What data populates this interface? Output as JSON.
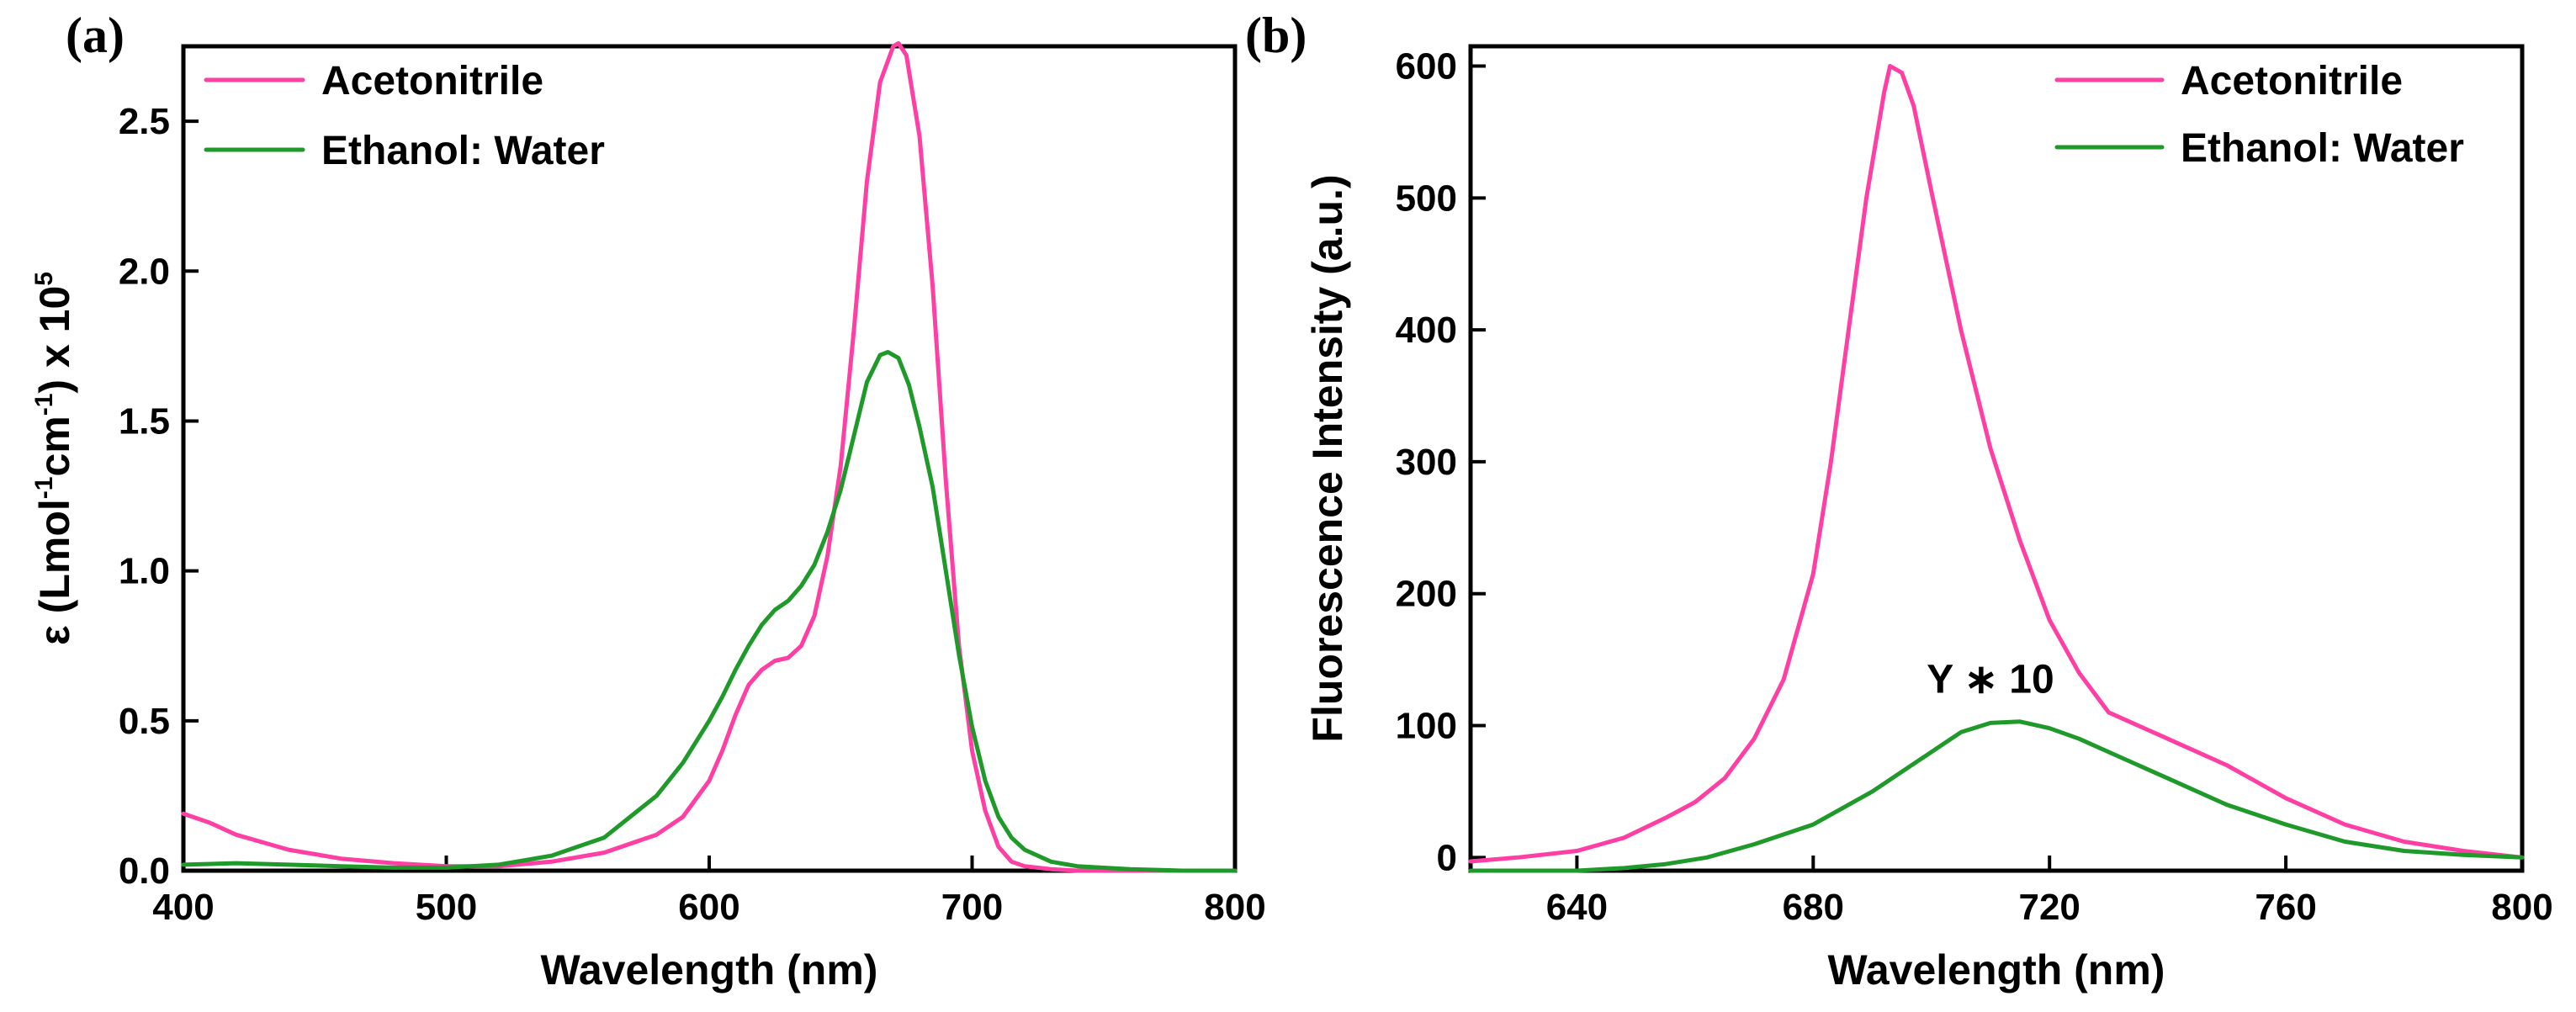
{
  "colors": {
    "acetonitrile": "#ff3fa3",
    "ethanol_water": "#1f9a2a"
  },
  "chart_data": [
    {
      "panel_label": "(a)",
      "type": "line",
      "xlabel": "Wavelength (nm)",
      "ylabel_main": "ε (Lmol",
      "ylabel_sup1": "-1",
      "ylabel_mid": "cm",
      "ylabel_sup2": "-1",
      "ylabel_end": ") x 10",
      "ylabel_sup3": "5",
      "xlim": [
        400,
        800
      ],
      "ylim": [
        0,
        2.75
      ],
      "xticks": [
        400,
        500,
        600,
        700,
        800
      ],
      "xtick_labels": [
        "400",
        "500",
        "600",
        "700",
        "800"
      ],
      "yticks": [
        0,
        0.5,
        1.0,
        1.5,
        2.0,
        2.5
      ],
      "ytick_labels": [
        "0.0",
        "0.5",
        "1.0",
        "1.5",
        "2.0",
        "2.5"
      ],
      "legend_position": "top-left",
      "series": [
        {
          "name": "Acetonitrile",
          "color": "#ff3fa3",
          "x": [
            400,
            410,
            420,
            440,
            460,
            480,
            500,
            520,
            540,
            560,
            580,
            590,
            600,
            605,
            610,
            615,
            620,
            625,
            630,
            635,
            640,
            645,
            650,
            655,
            660,
            665,
            670,
            672,
            675,
            680,
            685,
            690,
            695,
            700,
            705,
            710,
            715,
            720,
            730,
            740,
            760,
            780,
            800
          ],
          "y": [
            0.19,
            0.16,
            0.12,
            0.07,
            0.04,
            0.025,
            0.015,
            0.015,
            0.03,
            0.06,
            0.12,
            0.18,
            0.3,
            0.4,
            0.52,
            0.62,
            0.67,
            0.7,
            0.71,
            0.75,
            0.85,
            1.05,
            1.35,
            1.8,
            2.3,
            2.63,
            2.75,
            2.76,
            2.72,
            2.45,
            1.95,
            1.3,
            0.75,
            0.4,
            0.2,
            0.08,
            0.03,
            0.015,
            0.005,
            0.0,
            0.0,
            0.0,
            0.0
          ]
        },
        {
          "name": "Ethanol: Water",
          "color": "#1f9a2a",
          "x": [
            400,
            420,
            440,
            460,
            480,
            500,
            520,
            540,
            560,
            580,
            590,
            600,
            605,
            610,
            615,
            620,
            625,
            630,
            635,
            640,
            645,
            650,
            655,
            660,
            665,
            668,
            672,
            676,
            680,
            685,
            690,
            695,
            700,
            705,
            710,
            715,
            720,
            730,
            740,
            760,
            780,
            800
          ],
          "y": [
            0.02,
            0.025,
            0.02,
            0.015,
            0.01,
            0.01,
            0.02,
            0.05,
            0.11,
            0.25,
            0.36,
            0.5,
            0.58,
            0.67,
            0.75,
            0.82,
            0.87,
            0.9,
            0.95,
            1.02,
            1.13,
            1.27,
            1.45,
            1.63,
            1.72,
            1.73,
            1.71,
            1.62,
            1.48,
            1.28,
            1.0,
            0.72,
            0.48,
            0.3,
            0.18,
            0.11,
            0.07,
            0.03,
            0.015,
            0.005,
            0.0,
            0.0
          ]
        }
      ]
    },
    {
      "panel_label": "(b)",
      "type": "line",
      "xlabel": "Wavelength (nm)",
      "ylabel": "Fluorescence Intensity (a.u.)",
      "xlim": [
        622,
        800
      ],
      "ylim": [
        -10,
        615
      ],
      "xticks": [
        640,
        680,
        720,
        760,
        800
      ],
      "xtick_labels": [
        "640",
        "680",
        "720",
        "760",
        "800"
      ],
      "yticks": [
        0,
        100,
        200,
        300,
        400,
        500,
        600
      ],
      "ytick_labels": [
        "0",
        "100",
        "200",
        "300",
        "400",
        "500",
        "600"
      ],
      "legend_position": "top-right",
      "annotation": {
        "text": "Y ∗ 10",
        "x": 710,
        "y": 112
      },
      "series": [
        {
          "name": "Acetonitrile",
          "color": "#ff3fa3",
          "x": [
            622,
            630,
            640,
            648,
            655,
            660,
            665,
            670,
            675,
            680,
            683,
            686,
            689,
            692,
            693,
            695,
            697,
            700,
            705,
            710,
            715,
            720,
            725,
            730,
            740,
            750,
            760,
            770,
            780,
            790,
            800
          ],
          "y": [
            -3,
            0,
            5,
            15,
            30,
            42,
            60,
            90,
            135,
            215,
            300,
            400,
            500,
            580,
            600,
            595,
            570,
            505,
            400,
            310,
            240,
            180,
            140,
            110,
            90,
            70,
            45,
            25,
            12,
            5,
            0
          ],
          "draw_from_x": 622
        },
        {
          "name": "Ethanol: Water",
          "color": "#1f9a2a",
          "x": [
            622,
            640,
            648,
            655,
            662,
            670,
            680,
            690,
            700,
            705,
            710,
            715,
            720,
            725,
            730,
            740,
            750,
            760,
            770,
            780,
            790,
            800
          ],
          "y": [
            -10,
            -10,
            -8,
            -5,
            0,
            10,
            25,
            50,
            80,
            95,
            102,
            103,
            98,
            90,
            80,
            60,
            40,
            25,
            12,
            5,
            2,
            0
          ]
        }
      ]
    }
  ]
}
